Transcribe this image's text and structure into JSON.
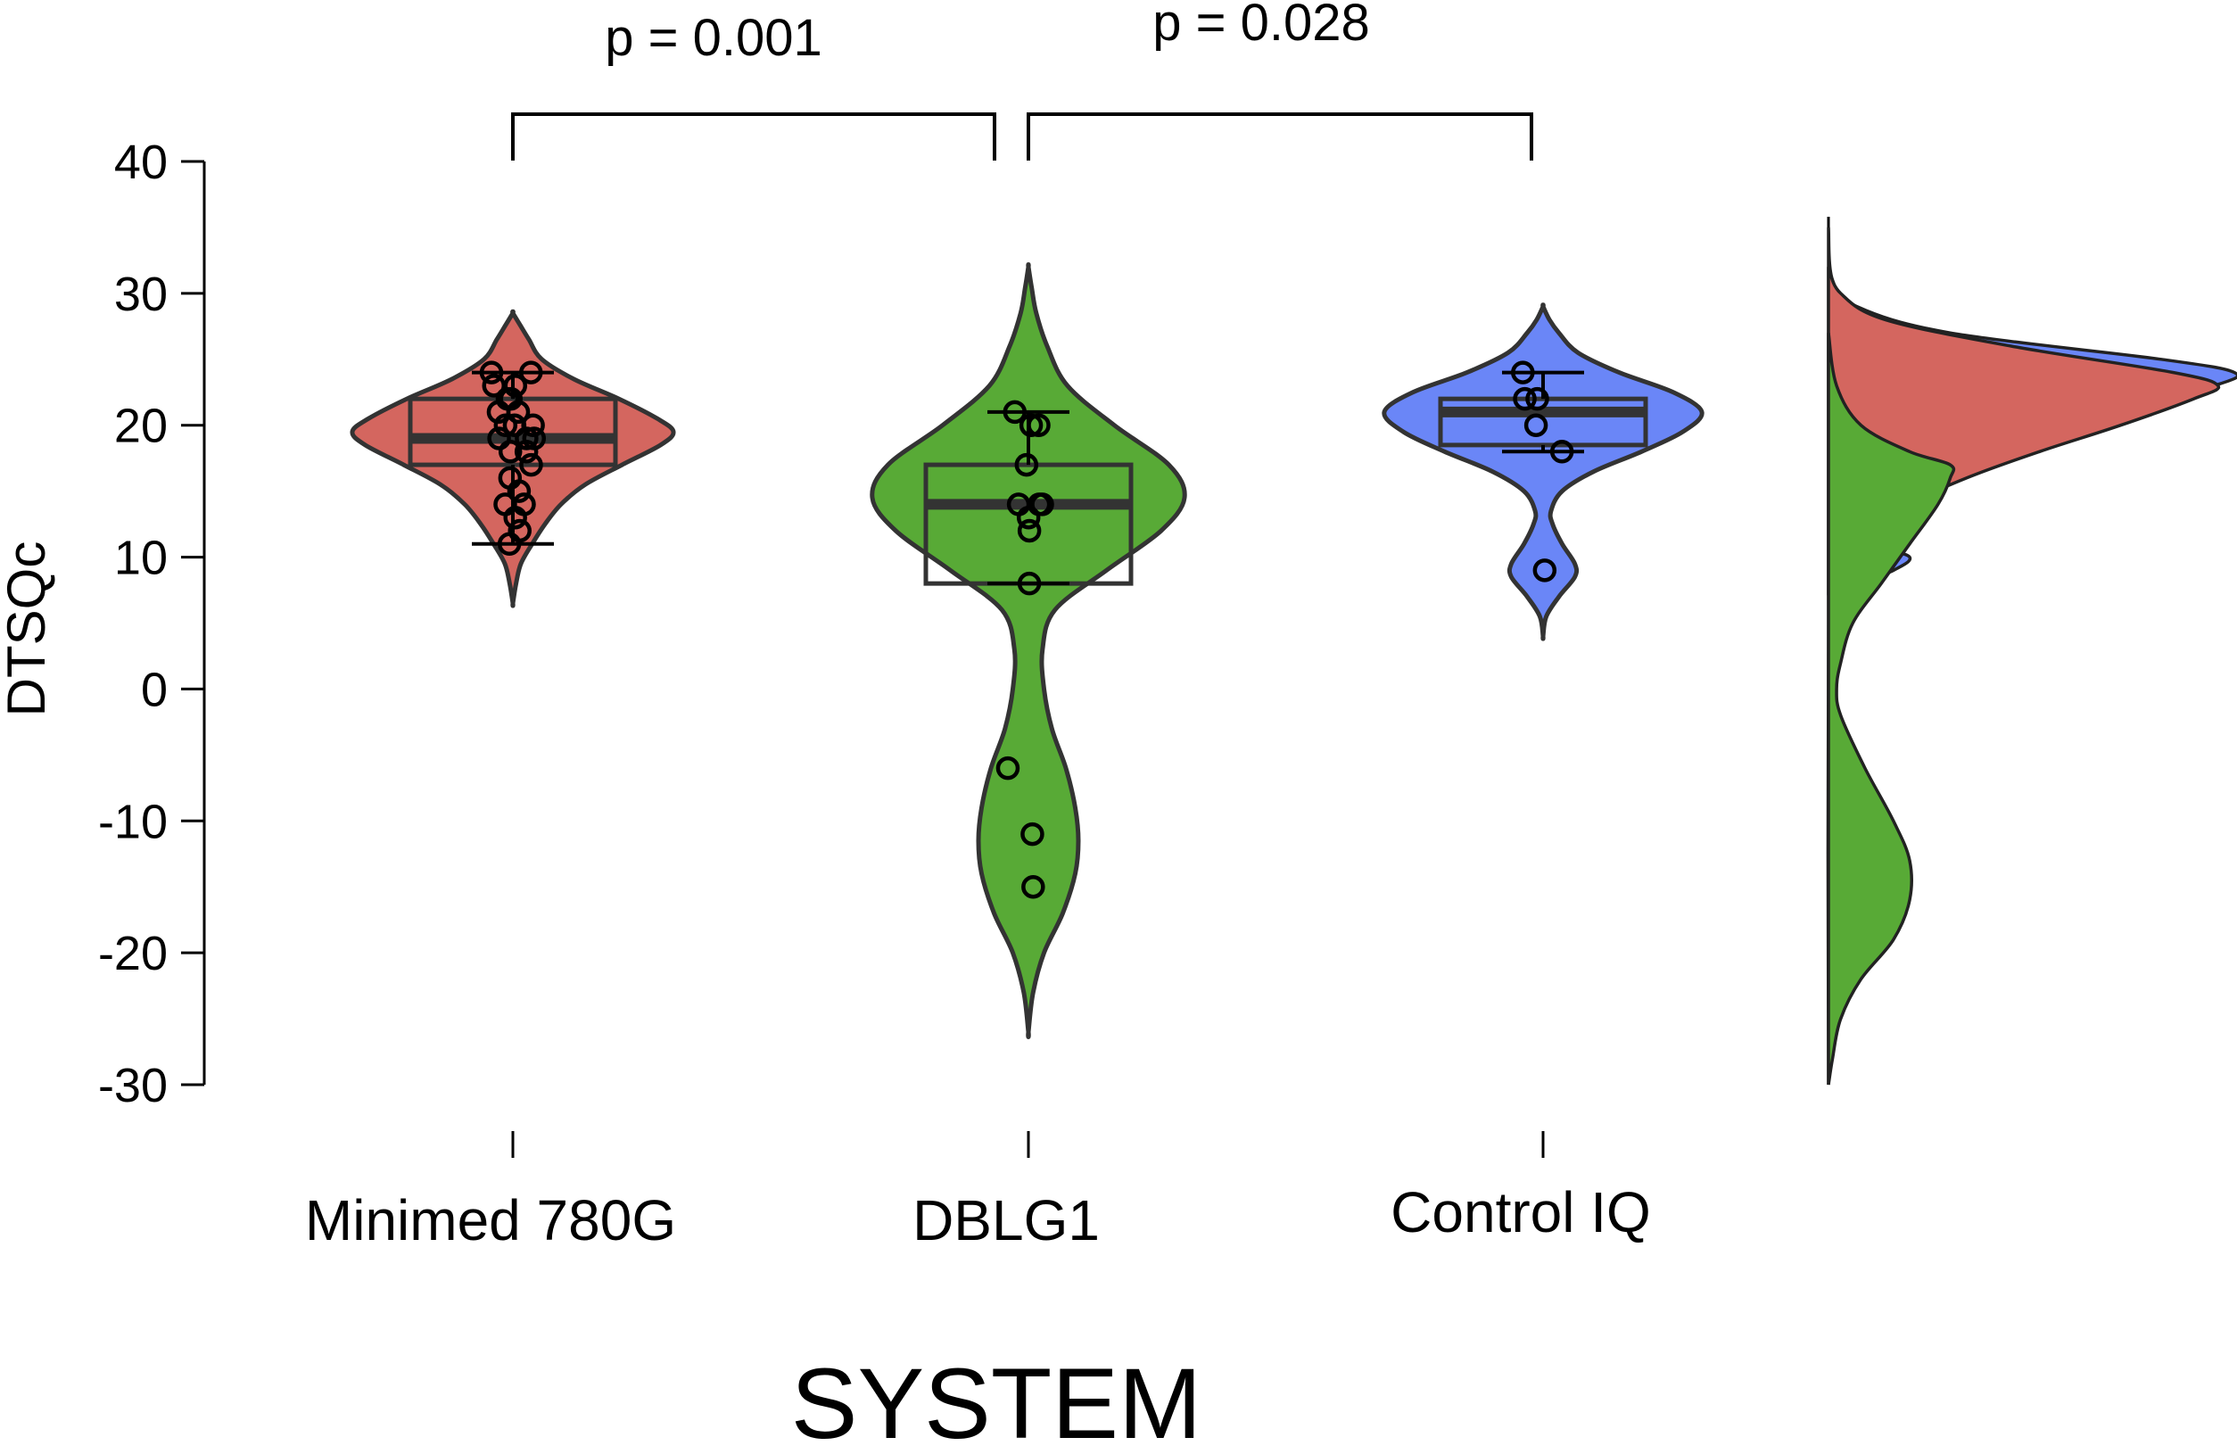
{
  "chart_data": {
    "type": "violin",
    "xlabel": "SYSTEM",
    "ylabel": "DTSQc",
    "ylim": [
      -30,
      40
    ],
    "yticks": [
      40,
      30,
      20,
      10,
      0,
      -10,
      -20,
      -30
    ],
    "categories": [
      "Minimed 780G",
      "DBLG1",
      "Control IQ"
    ],
    "series": [
      {
        "name": "Minimed 780G",
        "color": "#d4665f",
        "points": [
          24,
          24,
          23,
          23,
          22,
          22,
          21,
          21,
          20,
          20,
          20,
          19,
          19,
          19,
          18,
          18,
          17,
          16,
          15,
          14,
          14,
          13,
          12,
          11
        ],
        "box": {
          "q1": 17,
          "median": 19,
          "q3": 22
        },
        "whiskers": [
          11,
          24
        ],
        "violin_range": [
          6.5,
          28.5
        ],
        "density": [
          [
            6.5,
            0
          ],
          [
            8,
            0.02
          ],
          [
            9.5,
            0.05
          ],
          [
            11,
            0.12
          ],
          [
            12.5,
            0.2
          ],
          [
            14,
            0.3
          ],
          [
            15.5,
            0.45
          ],
          [
            17,
            0.68
          ],
          [
            18.5,
            0.92
          ],
          [
            19.5,
            1.0
          ],
          [
            20.5,
            0.9
          ],
          [
            22,
            0.66
          ],
          [
            23.5,
            0.38
          ],
          [
            25,
            0.18
          ],
          [
            26.5,
            0.1
          ],
          [
            27.5,
            0.05
          ],
          [
            28.5,
            0
          ]
        ]
      },
      {
        "name": "DBLG1",
        "color": "#58aa36",
        "points": [
          21,
          20,
          20,
          17,
          14,
          14,
          14,
          13,
          12,
          8,
          -6,
          -11,
          -15
        ],
        "box": {
          "q1": 8,
          "median": 14,
          "q3": 17
        },
        "whiskers": [
          8,
          21
        ],
        "violin_range": [
          -26,
          32
        ],
        "density": [
          [
            -26,
            0
          ],
          [
            -23,
            0.03
          ],
          [
            -20,
            0.1
          ],
          [
            -17,
            0.22
          ],
          [
            -14,
            0.3
          ],
          [
            -11.5,
            0.32
          ],
          [
            -9,
            0.3
          ],
          [
            -6,
            0.24
          ],
          [
            -3,
            0.15
          ],
          [
            0,
            0.1
          ],
          [
            3,
            0.09
          ],
          [
            6,
            0.17
          ],
          [
            9,
            0.5
          ],
          [
            12,
            0.85
          ],
          [
            14.5,
            1.0
          ],
          [
            17,
            0.9
          ],
          [
            20,
            0.55
          ],
          [
            23,
            0.25
          ],
          [
            26,
            0.12
          ],
          [
            28.5,
            0.05
          ],
          [
            30.5,
            0.02
          ],
          [
            32,
            0
          ]
        ]
      },
      {
        "name": "Control IQ",
        "color": "#6a86f7",
        "points": [
          24,
          22,
          22,
          20,
          18,
          9
        ],
        "box": {
          "q1": 18.5,
          "median": 21,
          "q3": 22
        },
        "whiskers": [
          18,
          24
        ],
        "violin_range": [
          4,
          29
        ],
        "density": [
          [
            4,
            0
          ],
          [
            5.5,
            0.02
          ],
          [
            7,
            0.1
          ],
          [
            8.5,
            0.2
          ],
          [
            9.5,
            0.2
          ],
          [
            11,
            0.12
          ],
          [
            12.5,
            0.06
          ],
          [
            13.5,
            0.05
          ],
          [
            15,
            0.12
          ],
          [
            16.5,
            0.32
          ],
          [
            18,
            0.62
          ],
          [
            19.5,
            0.88
          ],
          [
            21,
            1.0
          ],
          [
            22.5,
            0.82
          ],
          [
            24,
            0.48
          ],
          [
            25.5,
            0.22
          ],
          [
            27,
            0.1
          ],
          [
            28,
            0.04
          ],
          [
            29,
            0
          ]
        ]
      }
    ],
    "comparisons": [
      {
        "groups": [
          "Minimed 780G",
          "DBLG1"
        ],
        "label": "p = 0.001"
      },
      {
        "groups": [
          "DBLG1",
          "Control IQ"
        ],
        "label": "p = 0.028"
      }
    ],
    "marginal_density": [
      {
        "series": "Control IQ",
        "color": "#6a86f7",
        "density": [
          [
            -30,
            0
          ],
          [
            5,
            0
          ],
          [
            7,
            0.02
          ],
          [
            8,
            0.08
          ],
          [
            9,
            0.16
          ],
          [
            10,
            0.2
          ],
          [
            11,
            0.12
          ],
          [
            13,
            0.1
          ],
          [
            16,
            0.18
          ],
          [
            19,
            0.4
          ],
          [
            21,
            0.7
          ],
          [
            23,
            0.95
          ],
          [
            24,
            1.0
          ],
          [
            25,
            0.82
          ],
          [
            27,
            0.3
          ],
          [
            29,
            0.07
          ],
          [
            31,
            0.01
          ],
          [
            35,
            0
          ]
        ]
      },
      {
        "series": "Minimed 780G",
        "color": "#d4665f",
        "density": [
          [
            7.5,
            0
          ],
          [
            8.5,
            0.02
          ],
          [
            10,
            0.06
          ],
          [
            12,
            0.12
          ],
          [
            14,
            0.2
          ],
          [
            16,
            0.34
          ],
          [
            18,
            0.52
          ],
          [
            20,
            0.72
          ],
          [
            22,
            0.9
          ],
          [
            23,
            0.96
          ],
          [
            24,
            0.85
          ],
          [
            26,
            0.45
          ],
          [
            28,
            0.14
          ],
          [
            30,
            0.03
          ],
          [
            32,
            0
          ]
        ]
      },
      {
        "series": "DBLG1",
        "color": "#58aa36",
        "density": [
          [
            -30,
            0
          ],
          [
            -28,
            0.01
          ],
          [
            -25,
            0.03
          ],
          [
            -22,
            0.08
          ],
          [
            -19,
            0.16
          ],
          [
            -16,
            0.2
          ],
          [
            -13,
            0.2
          ],
          [
            -10,
            0.16
          ],
          [
            -6,
            0.09
          ],
          [
            -2,
            0.03
          ],
          [
            0,
            0.02
          ],
          [
            2,
            0.03
          ],
          [
            5,
            0.06
          ],
          [
            8,
            0.13
          ],
          [
            11,
            0.2
          ],
          [
            14,
            0.27
          ],
          [
            16,
            0.3
          ],
          [
            17,
            0.3
          ],
          [
            18,
            0.2
          ],
          [
            20,
            0.08
          ],
          [
            23,
            0.02
          ],
          [
            27,
            0
          ]
        ]
      }
    ]
  }
}
